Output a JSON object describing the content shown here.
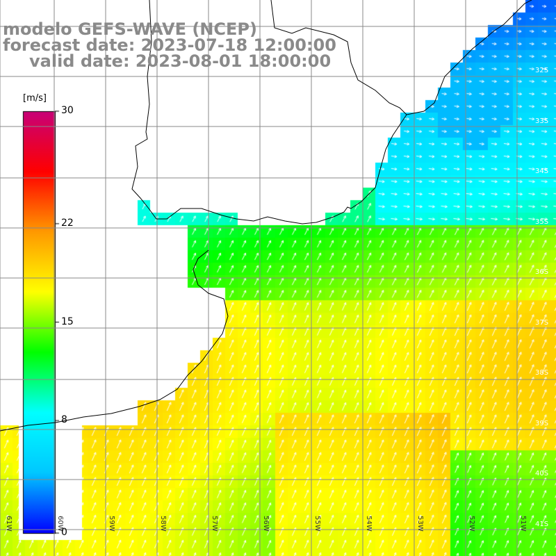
{
  "title": {
    "line1": "modelo GEFS-WAVE (NCEP)",
    "line2": "forecast date: 2023-07-18 12:00:00",
    "line3": "valid date: 2023-08-01 18:00:00"
  },
  "colorbar": {
    "unit": "[m/s]",
    "ticks": [
      "30",
      "22",
      "15",
      "8",
      "0"
    ],
    "tick_values": [
      30,
      22,
      15,
      8,
      0
    ],
    "stops": [
      "#0000ff",
      "#00c8ff",
      "#00ffff",
      "#00ff00",
      "#ffff00",
      "#ff9900",
      "#ff0000",
      "#c80078"
    ]
  },
  "lat_labels": [
    "32S",
    "33S",
    "34S",
    "35S",
    "36S",
    "37S",
    "38S",
    "39S",
    "40S",
    "41S"
  ],
  "lon_labels": [
    "61W",
    "60W",
    "59W",
    "58W",
    "57W",
    "56W",
    "55W",
    "54W",
    "53W",
    "52W",
    "51W"
  ],
  "colors": {
    "land": "#ffffff",
    "grid": "#888888",
    "coast": "#000000",
    "arrow": "#ffffff",
    "title": "#8a8a8a"
  }
}
